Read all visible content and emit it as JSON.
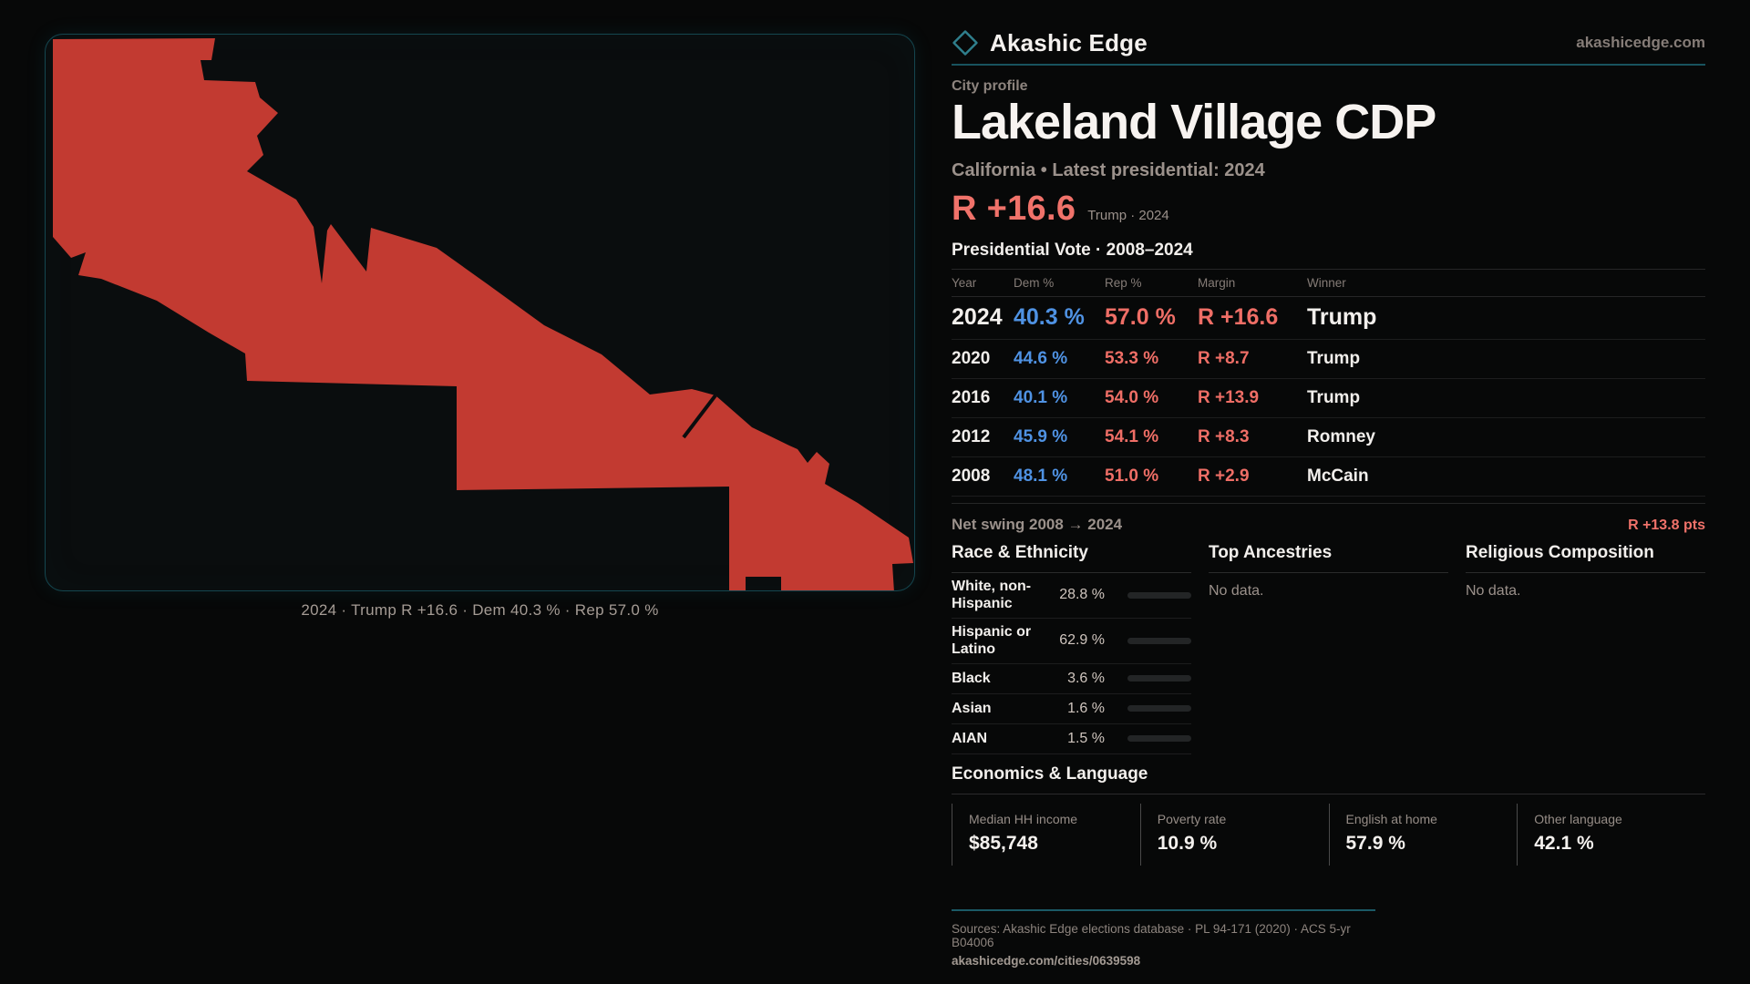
{
  "brand": {
    "name": "Akashic Edge",
    "domain": "akashicedge.com"
  },
  "page": {
    "kicker": "City profile",
    "title": "Lakeland Village CDP",
    "subtitle": "California • Latest presidential: 2024"
  },
  "headline": {
    "margin": "R +16.6",
    "context": "Trump · 2024"
  },
  "map": {
    "caption": "2024 · Trump R +16.6 · Dem 40.3 % · Rep 57.0 %",
    "shape_color": "#c23a31"
  },
  "table": {
    "title": "Presidential Vote · 2008–2024",
    "columns": {
      "year": "Year",
      "dem": "Dem %",
      "rep": "Rep %",
      "margin": "Margin",
      "winner": "Winner"
    },
    "rows": [
      {
        "year": "2024",
        "dem": "40.3 %",
        "rep": "57.0 %",
        "margin": "R +16.6",
        "winner": "Trump"
      },
      {
        "year": "2020",
        "dem": "44.6 %",
        "rep": "53.3 %",
        "margin": "R +8.7",
        "winner": "Trump"
      },
      {
        "year": "2016",
        "dem": "40.1 %",
        "rep": "54.0 %",
        "margin": "R +13.9",
        "winner": "Trump"
      },
      {
        "year": "2012",
        "dem": "45.9 %",
        "rep": "54.1 %",
        "margin": "R +8.3",
        "winner": "Romney"
      },
      {
        "year": "2008",
        "dem": "48.1 %",
        "rep": "51.0 %",
        "margin": "R +2.9",
        "winner": "McCain"
      }
    ]
  },
  "net_swing": {
    "label": "Net swing 2008 → 2024",
    "value": "R +13.8 pts"
  },
  "race": {
    "title": "Race & Ethnicity",
    "rows": [
      {
        "label": "White, non-Hispanic",
        "value": "28.8 %",
        "pct": 28.8,
        "color": "#97aac7"
      },
      {
        "label": "Hispanic or Latino",
        "value": "62.9 %",
        "pct": 62.9,
        "color": "#e3a01e"
      },
      {
        "label": "Black",
        "value": "3.6 %",
        "pct": 3.6,
        "color": "#8f7ae8"
      },
      {
        "label": "Asian",
        "value": "1.6 %",
        "pct": 1.6,
        "color": "#35a877"
      },
      {
        "label": "AIAN",
        "value": "1.5 %",
        "pct": 1.5,
        "color": "#cd7426"
      }
    ]
  },
  "ancestries": {
    "title": "Top Ancestries",
    "empty": "No data."
  },
  "religion": {
    "title": "Religious Composition",
    "empty": "No data."
  },
  "economics": {
    "title": "Economics & Language",
    "stats": [
      {
        "label": "Median HH income",
        "value": "$85,748"
      },
      {
        "label": "Poverty rate",
        "value": "10.9 %"
      },
      {
        "label": "English at home",
        "value": "57.9 %"
      },
      {
        "label": "Other language",
        "value": "42.1 %"
      }
    ]
  },
  "footer": {
    "sources": "Sources: Akashic Edge elections database · PL 94-171 (2020) · ACS 5-yr B04006",
    "permalink": "akashicedge.com/cities/0639598"
  },
  "colors": {
    "accent_rep": "#f0726a",
    "accent_dem": "#4f92e3",
    "teal": "#1b5a66"
  }
}
